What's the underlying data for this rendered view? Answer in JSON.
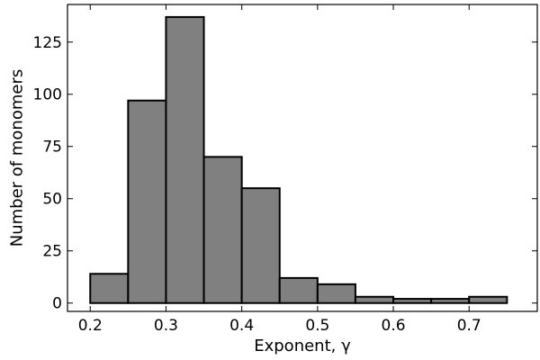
{
  "chart_data": {
    "type": "bar",
    "subtype": "histogram",
    "title": "",
    "xlabel": "Exponent, γ",
    "ylabel": "Number of monomers",
    "bins": [
      {
        "x0": 0.2,
        "x1": 0.25,
        "count": 14
      },
      {
        "x0": 0.25,
        "x1": 0.3,
        "count": 97
      },
      {
        "x0": 0.3,
        "x1": 0.35,
        "count": 137
      },
      {
        "x0": 0.35,
        "x1": 0.4,
        "count": 70
      },
      {
        "x0": 0.4,
        "x1": 0.45,
        "count": 55
      },
      {
        "x0": 0.45,
        "x1": 0.5,
        "count": 12
      },
      {
        "x0": 0.5,
        "x1": 0.55,
        "count": 9
      },
      {
        "x0": 0.55,
        "x1": 0.6,
        "count": 3
      },
      {
        "x0": 0.6,
        "x1": 0.65,
        "count": 2
      },
      {
        "x0": 0.65,
        "x1": 0.7,
        "count": 2
      },
      {
        "x0": 0.7,
        "x1": 0.75,
        "count": 3
      }
    ],
    "xlim": [
      0.17,
      0.79
    ],
    "ylim": [
      -4,
      143
    ],
    "xticks": [
      0.2,
      0.3,
      0.4,
      0.5,
      0.6,
      0.7
    ],
    "xtick_labels": [
      "0.2",
      "0.3",
      "0.4",
      "0.5",
      "0.6",
      "0.7"
    ],
    "yticks": [
      0,
      25,
      50,
      75,
      100,
      125
    ],
    "ytick_labels": [
      "0",
      "25",
      "50",
      "75",
      "100",
      "125"
    ],
    "bar_color": "#808080",
    "edge_color": "#000000",
    "grid": false,
    "legend": "none"
  }
}
